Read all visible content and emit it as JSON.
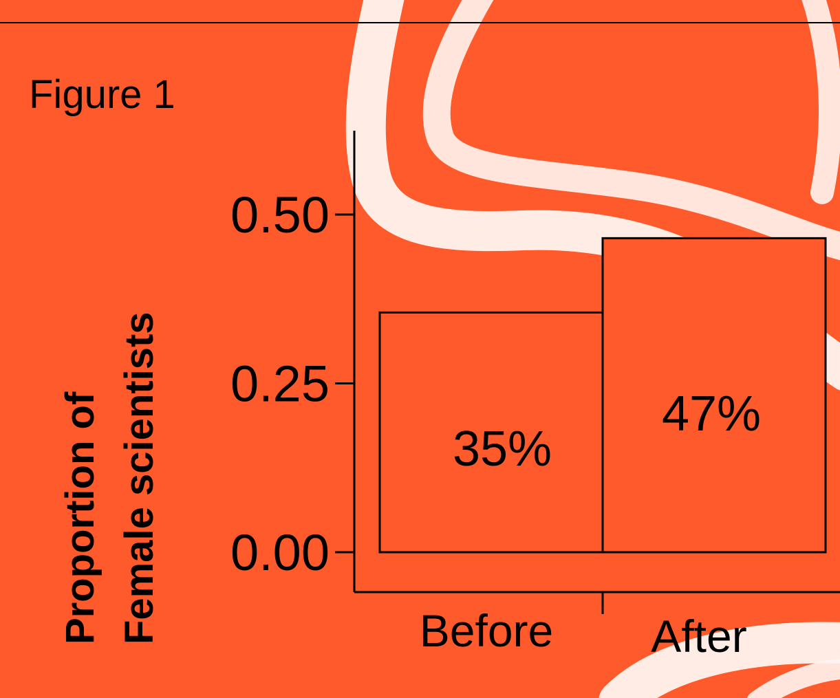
{
  "colors": {
    "background": "#ff5a2c",
    "bar_fill": "#ff5a2c",
    "ink": "#000000",
    "swoosh": "#fff4ef"
  },
  "figure_label": "Figure 1",
  "chart_data": {
    "type": "bar",
    "categories": [
      "Before",
      "After"
    ],
    "values": [
      0.355,
      0.465
    ],
    "data_labels": [
      "35%",
      "47%"
    ],
    "ylabel_lines": [
      "Proportion of",
      "Female scientists"
    ],
    "xlabel": "",
    "yticks": [
      0.0,
      0.25,
      0.5
    ],
    "ytick_labels": [
      "0.00",
      "0.25",
      "0.50"
    ],
    "ylim": [
      0,
      0.5
    ],
    "grid": false,
    "legend": "none"
  }
}
